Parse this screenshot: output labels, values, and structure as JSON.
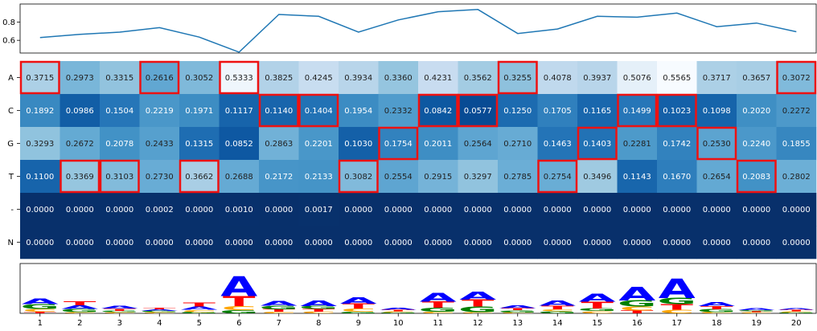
{
  "chart_data": [
    {
      "type": "line",
      "x": [
        1,
        2,
        3,
        4,
        5,
        6,
        7,
        8,
        9,
        10,
        11,
        12,
        13,
        14,
        15,
        16,
        17,
        18,
        19,
        20
      ],
      "values": [
        0.63,
        0.665,
        0.69,
        0.74,
        0.635,
        0.47,
        0.885,
        0.865,
        0.69,
        0.825,
        0.915,
        0.94,
        0.675,
        0.725,
        0.865,
        0.855,
        0.9,
        0.75,
        0.79,
        0.695
      ],
      "ylim": [
        0.46,
        1.0
      ],
      "yticks": [
        "0.6",
        "0.8"
      ],
      "color": "#1f77b4"
    },
    {
      "type": "heatmap",
      "rows": [
        "A",
        "C",
        "G",
        "T",
        "-",
        "N"
      ],
      "columns": [
        "1",
        "2",
        "3",
        "4",
        "5",
        "6",
        "7",
        "8",
        "9",
        "10",
        "11",
        "12",
        "13",
        "14",
        "15",
        "16",
        "17",
        "18",
        "19",
        "20"
      ],
      "values": [
        [
          "0.3715",
          "0.2973",
          "0.3315",
          "0.2616",
          "0.3052",
          "0.5333",
          "0.3825",
          "0.4245",
          "0.3934",
          "0.3360",
          "0.4231",
          "0.3562",
          "0.3255",
          "0.4078",
          "0.3937",
          "0.5076",
          "0.5565",
          "0.3717",
          "0.3657",
          "0.3072"
        ],
        [
          "0.1892",
          "0.0986",
          "0.1504",
          "0.2219",
          "0.1971",
          "0.1117",
          "0.1140",
          "0.1404",
          "0.1954",
          "0.2332",
          "0.0842",
          "0.0577",
          "0.1250",
          "0.1705",
          "0.1165",
          "0.1499",
          "0.1023",
          "0.1098",
          "0.2020",
          "0.2272"
        ],
        [
          "0.3293",
          "0.2672",
          "0.2078",
          "0.2433",
          "0.1315",
          "0.0852",
          "0.2863",
          "0.2201",
          "0.1030",
          "0.1754",
          "0.2011",
          "0.2564",
          "0.2710",
          "0.1463",
          "0.1403",
          "0.2281",
          "0.1742",
          "0.2530",
          "0.2240",
          "0.1855"
        ],
        [
          "0.1100",
          "0.3369",
          "0.3103",
          "0.2730",
          "0.3662",
          "0.2688",
          "0.2172",
          "0.2133",
          "0.3082",
          "0.2554",
          "0.2915",
          "0.3297",
          "0.2785",
          "0.2754",
          "0.3496",
          "0.1143",
          "0.1670",
          "0.2654",
          "0.2083",
          "0.2802"
        ],
        [
          "0.0000",
          "0.0000",
          "0.0000",
          "0.0002",
          "0.0000",
          "0.0010",
          "0.0000",
          "0.0017",
          "0.0000",
          "0.0000",
          "0.0000",
          "0.0000",
          "0.0000",
          "0.0000",
          "0.0000",
          "0.0000",
          "0.0000",
          "0.0000",
          "0.0000",
          "0.0000"
        ],
        [
          "0.0000",
          "0.0000",
          "0.0000",
          "0.0000",
          "0.0000",
          "0.0000",
          "0.0000",
          "0.0000",
          "0.0000",
          "0.0000",
          "0.0000",
          "0.0000",
          "0.0000",
          "0.0000",
          "0.0000",
          "0.0000",
          "0.0000",
          "0.0000",
          "0.0000",
          "0.0000"
        ]
      ],
      "highlighted_row_per_column": [
        "A",
        "T",
        "T",
        "A",
        "T",
        "A",
        "C",
        "C",
        "T",
        "G",
        "C",
        "C",
        "A",
        "T",
        "G",
        "C",
        "C",
        "G",
        "T",
        "A"
      ],
      "colormap": "Blues (reversed)",
      "highlight_color": "#ee1111"
    },
    {
      "type": "sequence-logo",
      "letters": [
        "A",
        "C",
        "G",
        "T"
      ],
      "letter_colors": {
        "A": "#0000ff",
        "C": "#ffa500",
        "G": "#008000",
        "T": "#ff0000"
      },
      "xticks": [
        "1",
        "2",
        "3",
        "4",
        "5",
        "6",
        "7",
        "8",
        "9",
        "10",
        "11",
        "12",
        "13",
        "14",
        "15",
        "16",
        "17",
        "18",
        "19",
        "20"
      ]
    }
  ]
}
